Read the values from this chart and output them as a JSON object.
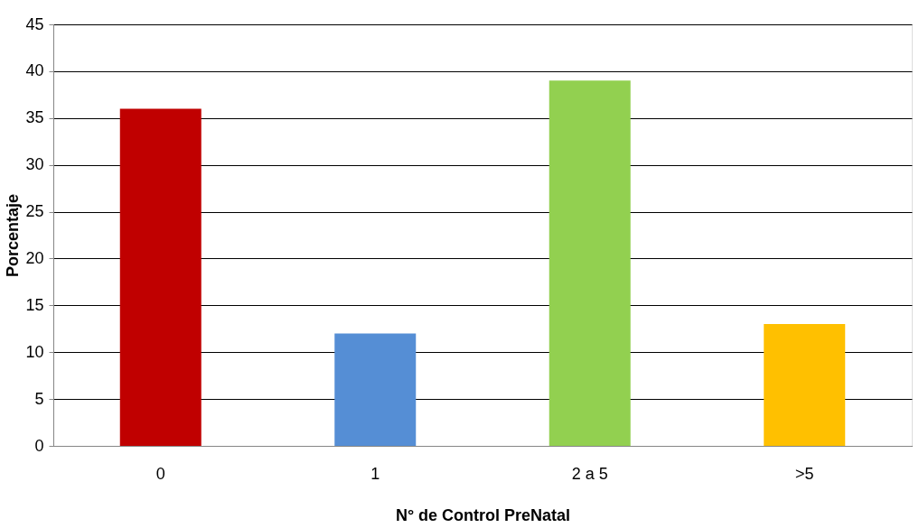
{
  "chart_data": {
    "type": "bar",
    "xlabel": "N° de Control PreNatal",
    "ylabel": "Porcentaje",
    "categories": [
      "0",
      "1",
      "2 a 5",
      ">5"
    ],
    "values": [
      36,
      12,
      39,
      13
    ],
    "colors": [
      "#c00000",
      "#558ed5",
      "#92d050",
      "#ffc000"
    ],
    "ylim": [
      0,
      45
    ],
    "yticks": [
      0,
      5,
      10,
      15,
      20,
      25,
      30,
      35,
      40,
      45
    ],
    "grid": "y",
    "legend": false
  }
}
